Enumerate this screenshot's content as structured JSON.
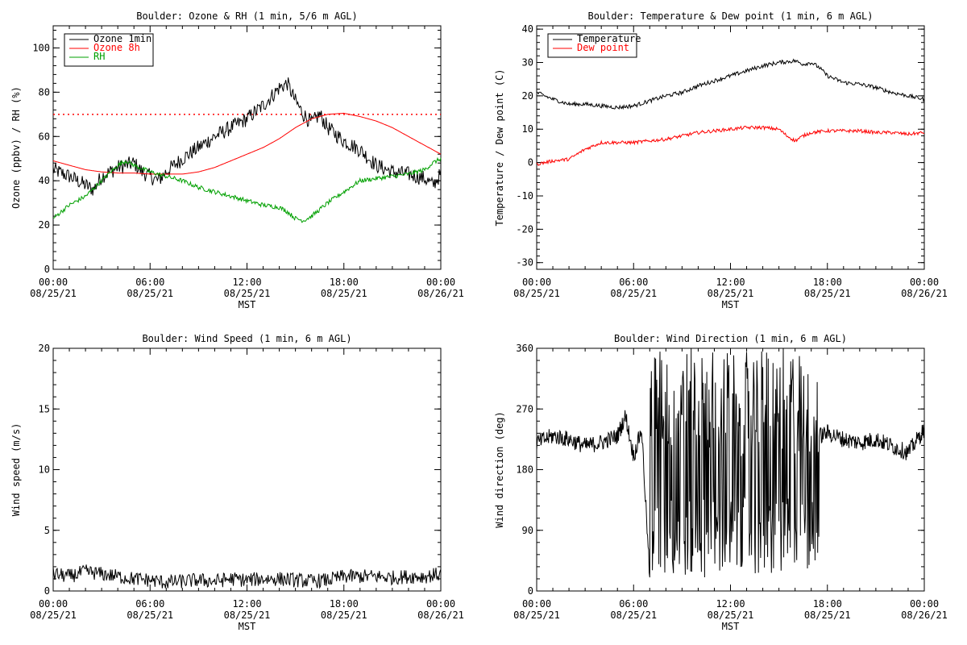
{
  "chart_data": [
    {
      "type": "line",
      "title": "Boulder: Ozone & RH (1 min, 5/6 m AGL)",
      "xlabel": "MST",
      "ylabel": "Ozone (ppbv) / RH (%)",
      "x_tick_labels": [
        [
          "00:00",
          "08/25/21"
        ],
        [
          "06:00",
          "08/25/21"
        ],
        [
          "12:00",
          "08/25/21"
        ],
        [
          "18:00",
          "08/25/21"
        ],
        [
          "00:00",
          "08/26/21"
        ]
      ],
      "xlim": [
        0,
        24
      ],
      "ylim": [
        0,
        110
      ],
      "y_ticks": [
        0,
        20,
        40,
        60,
        80,
        100
      ],
      "legend_position": "top-left",
      "reference_line": {
        "y": 70,
        "style": "dotted",
        "color": "#ff0000"
      },
      "series": [
        {
          "name": "Ozone 1min",
          "color": "#000000",
          "x": [
            0,
            1,
            2,
            2.5,
            3,
            4,
            5,
            5.5,
            6,
            6.5,
            7,
            8,
            9,
            10,
            11,
            12,
            13,
            13.5,
            14,
            14.5,
            15,
            15.5,
            16,
            16.5,
            17,
            18,
            19,
            20,
            21,
            22,
            23,
            23.5,
            24
          ],
          "y": [
            45,
            42,
            38,
            36,
            42,
            46,
            48,
            44,
            42,
            40,
            44,
            50,
            55,
            60,
            64,
            68,
            74,
            78,
            82,
            84,
            76,
            70,
            66,
            70,
            64,
            58,
            54,
            47,
            44,
            43,
            41,
            38,
            43
          ]
        },
        {
          "name": "Ozone 8h",
          "color": "#ff0000",
          "x": [
            0,
            1,
            2,
            3,
            4,
            5,
            6,
            7,
            8,
            9,
            10,
            11,
            12,
            13,
            14,
            15,
            16,
            17,
            18,
            19,
            20,
            21,
            22,
            23,
            24
          ],
          "y": [
            49,
            47,
            45,
            44,
            43.5,
            43.5,
            43,
            43,
            43,
            44,
            46,
            49,
            52,
            55,
            59,
            64,
            68,
            70,
            70.5,
            69,
            67,
            64,
            60,
            56,
            52
          ]
        },
        {
          "name": "RH",
          "color": "#00a000",
          "x": [
            0,
            1,
            2,
            3,
            4,
            4.5,
            5,
            6,
            7,
            8,
            9,
            10,
            11,
            12,
            13,
            14,
            14.5,
            15,
            15.5,
            16,
            16.5,
            17,
            18,
            19,
            20,
            21,
            22,
            23,
            23.5,
            24
          ],
          "y": [
            23,
            29,
            33,
            40,
            47,
            49,
            47,
            44,
            42,
            40,
            37,
            35,
            33,
            31,
            29,
            28,
            26,
            23,
            22,
            24,
            27,
            30,
            35,
            40,
            41,
            42,
            43,
            45,
            48,
            50
          ]
        }
      ]
    },
    {
      "type": "line",
      "title": "Boulder: Temperature & Dew point (1 min, 6 m AGL)",
      "xlabel": "MST",
      "ylabel": "Temperature / Dew point (C)",
      "x_tick_labels": [
        [
          "00:00",
          "08/25/21"
        ],
        [
          "06:00",
          "08/25/21"
        ],
        [
          "12:00",
          "08/25/21"
        ],
        [
          "18:00",
          "08/25/21"
        ],
        [
          "00:00",
          "08/26/21"
        ]
      ],
      "xlim": [
        0,
        24
      ],
      "ylim": [
        -32,
        41
      ],
      "y_ticks": [
        -30,
        -20,
        -10,
        0,
        10,
        20,
        30,
        40
      ],
      "legend_position": "top-left",
      "series": [
        {
          "name": "Temperature",
          "color": "#000000",
          "x": [
            0,
            1,
            2,
            3,
            4,
            5,
            6,
            7,
            8,
            9,
            10,
            11,
            12,
            13,
            14,
            15,
            16,
            16.5,
            17,
            17.5,
            18,
            19,
            20,
            21,
            22,
            23,
            24
          ],
          "y": [
            21,
            19,
            17.5,
            17.5,
            17,
            16.5,
            17,
            18.5,
            20,
            21,
            23,
            24.5,
            26,
            27.5,
            29,
            30,
            30.5,
            29.5,
            30,
            28.5,
            26,
            24,
            23.5,
            22.5,
            21,
            20,
            19
          ]
        },
        {
          "name": "Dew point",
          "color": "#ff0000",
          "x": [
            0,
            1,
            2,
            3,
            4,
            5,
            6,
            7,
            8,
            9,
            10,
            11,
            12,
            13,
            14,
            15,
            15.5,
            16,
            16.5,
            17,
            18,
            19,
            20,
            21,
            22,
            23,
            24
          ],
          "y": [
            -0.5,
            0.5,
            1,
            4,
            6,
            6,
            6,
            6.5,
            7,
            8,
            9,
            9.5,
            10,
            10.5,
            10.5,
            10,
            8,
            6.5,
            8,
            9,
            9.5,
            9.5,
            9.5,
            9,
            9,
            8.5,
            9
          ]
        }
      ]
    },
    {
      "type": "line",
      "title": "Boulder: Wind Speed (1 min, 6 m AGL)",
      "xlabel": "MST",
      "ylabel": "Wind speed (m/s)",
      "x_tick_labels": [
        [
          "00:00",
          "08/25/21"
        ],
        [
          "06:00",
          "08/25/21"
        ],
        [
          "12:00",
          "08/25/21"
        ],
        [
          "18:00",
          "08/25/21"
        ],
        [
          "00:00",
          "08/26/21"
        ]
      ],
      "xlim": [
        0,
        24
      ],
      "ylim": [
        0,
        20
      ],
      "y_ticks": [
        0,
        5,
        10,
        15,
        20
      ],
      "series": [
        {
          "color": "#000000",
          "x": [
            0,
            1,
            2,
            3,
            4,
            5,
            6,
            7,
            8,
            9,
            10,
            11,
            12,
            13,
            14,
            15,
            16,
            17,
            18,
            19,
            20,
            21,
            22,
            23,
            24
          ],
          "y": [
            1.4,
            1.2,
            1.6,
            1.4,
            1.2,
            1.0,
            0.9,
            0.7,
            0.8,
            0.9,
            0.8,
            1.0,
            0.9,
            1.0,
            1.0,
            0.9,
            0.8,
            0.9,
            1.2,
            1.2,
            1.2,
            1.1,
            1.2,
            1.2,
            1.4
          ]
        }
      ]
    },
    {
      "type": "line",
      "title": "Boulder: Wind Direction (1 min, 6 m AGL)",
      "xlabel": "MST",
      "ylabel": "Wind direction (deg)",
      "x_tick_labels": [
        [
          "00:00",
          "08/25/21"
        ],
        [
          "06:00",
          "08/25/21"
        ],
        [
          "12:00",
          "08/25/21"
        ],
        [
          "18:00",
          "08/25/21"
        ],
        [
          "00:00",
          "08/26/21"
        ]
      ],
      "xlim": [
        0,
        24
      ],
      "ylim": [
        0,
        360
      ],
      "y_ticks": [
        0,
        90,
        180,
        270,
        360
      ],
      "series": [
        {
          "color": "#000000",
          "x": [
            0,
            1,
            2,
            3,
            4,
            5,
            5.5,
            6,
            6.5,
            7,
            7.5,
            8,
            8.5,
            9,
            9.5,
            10,
            10.5,
            11,
            11.5,
            12,
            12.5,
            13,
            13.5,
            14,
            14.5,
            15,
            15.5,
            16,
            16.5,
            17,
            17.5,
            18,
            19,
            20,
            21,
            22,
            23,
            24
          ],
          "y": [
            220,
            230,
            225,
            215,
            220,
            230,
            260,
            200,
            240,
            20,
            320,
            60,
            300,
            30,
            340,
            80,
            330,
            60,
            280,
            200,
            150,
            330,
            70,
            300,
            60,
            340,
            120,
            240,
            30,
            340,
            230,
            235,
            225,
            220,
            225,
            215,
            205,
            240
          ]
        }
      ]
    }
  ]
}
